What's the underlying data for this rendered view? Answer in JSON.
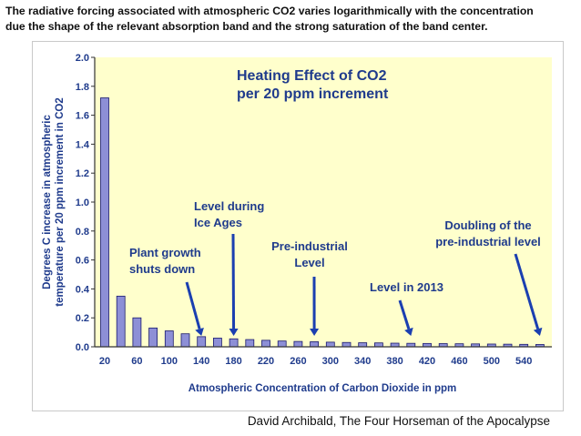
{
  "caption": {
    "line1": "The radiative forcing associated with atmospheric CO2 varies logarithmically with the concentration",
    "line2": "due the shape of the relevant absorption band and the strong saturation of the band center."
  },
  "credit": "David Archibald, The Four Horseman of the Apocalypse",
  "colors": {
    "plot_bg": "#ffffcc",
    "bar_fill": "#8d8fd6",
    "bar_stroke": "#1a1a6e",
    "text": "#1f3b8c",
    "arrow": "#1b3fb0"
  },
  "chart_data": {
    "type": "bar",
    "title": [
      "Heating Effect of CO2",
      "per 20 ppm increment"
    ],
    "xlabel": "Atmospheric Concentration of Carbon Dioxide in ppm",
    "ylabel": [
      "Degrees C increase in atmospheric",
      "temperature per 20 ppm increment in CO2"
    ],
    "ylim": [
      0,
      2.0
    ],
    "yticks": [
      "0.0",
      "0.2",
      "0.4",
      "0.6",
      "0.8",
      "1.0",
      "1.2",
      "1.4",
      "1.6",
      "1.8",
      "2.0"
    ],
    "xticks": [
      "20",
      "60",
      "100",
      "140",
      "180",
      "220",
      "260",
      "300",
      "340",
      "380",
      "420",
      "460",
      "500",
      "540"
    ],
    "categories": [
      20,
      40,
      60,
      80,
      100,
      120,
      140,
      160,
      180,
      200,
      220,
      240,
      260,
      280,
      300,
      320,
      340,
      360,
      380,
      400,
      420,
      440,
      460,
      480,
      500,
      520,
      540,
      560
    ],
    "values": [
      1.72,
      0.35,
      0.2,
      0.13,
      0.11,
      0.09,
      0.07,
      0.06,
      0.055,
      0.05,
      0.045,
      0.04,
      0.037,
      0.035,
      0.032,
      0.03,
      0.028,
      0.027,
      0.025,
      0.024,
      0.023,
      0.022,
      0.021,
      0.02,
      0.019,
      0.018,
      0.017,
      0.016
    ],
    "grid": false,
    "annotations": [
      {
        "id": "plant",
        "lines": [
          "Plant growth",
          "shuts down"
        ],
        "target": 140
      },
      {
        "id": "ice",
        "lines": [
          "Level during",
          "Ice Ages"
        ],
        "target": 180
      },
      {
        "id": "preind",
        "lines": [
          "Pre-industrial",
          "Level"
        ],
        "target": 280
      },
      {
        "id": "y2013",
        "lines": [
          "Level  in 2013"
        ],
        "target": 400
      },
      {
        "id": "doubling",
        "lines": [
          "Doubling of the",
          "pre-industrial level"
        ],
        "target": 560
      }
    ]
  }
}
